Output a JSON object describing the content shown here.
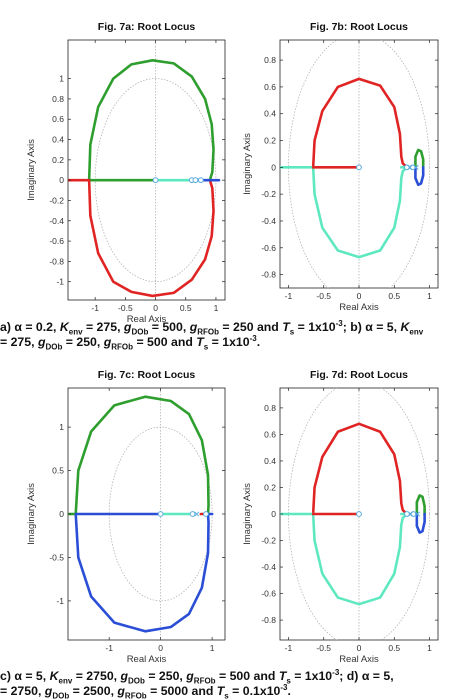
{
  "captions": {
    "ab": {
      "line1": [
        {
          "t": "a) α = 0.2, "
        },
        {
          "t": "K",
          "i": true
        },
        {
          "t": "env",
          "sub": true
        },
        {
          "t": " = 275, "
        },
        {
          "t": "g",
          "i": true
        },
        {
          "t": "DOb",
          "sub": true
        },
        {
          "t": " = 500, "
        },
        {
          "t": "g",
          "i": true
        },
        {
          "t": "RFOb",
          "sub": true
        },
        {
          "t": " = 250 and "
        },
        {
          "t": "T",
          "i": true
        },
        {
          "t": "s",
          "sub": true
        },
        {
          "t": " = 1x10"
        },
        {
          "t": "-3",
          "sup": true
        },
        {
          "t": "; b) α = 5, "
        },
        {
          "t": "K",
          "i": true
        },
        {
          "t": "env",
          "sub": true
        }
      ],
      "line2": [
        {
          "t": "= 275, "
        },
        {
          "t": "g",
          "i": true
        },
        {
          "t": "DOb",
          "sub": true
        },
        {
          "t": " = 250, "
        },
        {
          "t": "g",
          "i": true
        },
        {
          "t": "RFOb",
          "sub": true
        },
        {
          "t": " = 500 and "
        },
        {
          "t": "T",
          "i": true
        },
        {
          "t": "s",
          "sub": true
        },
        {
          "t": " = 1x10"
        },
        {
          "t": "-3",
          "sup": true
        },
        {
          "t": "."
        }
      ]
    },
    "cd": {
      "line1": [
        {
          "t": "c) α = 5, "
        },
        {
          "t": "K",
          "i": true
        },
        {
          "t": "env",
          "sub": true
        },
        {
          "t": " = 2750, "
        },
        {
          "t": "g",
          "i": true
        },
        {
          "t": "DOb",
          "sub": true
        },
        {
          "t": " = 250, "
        },
        {
          "t": "g",
          "i": true
        },
        {
          "t": "RFOb",
          "sub": true
        },
        {
          "t": " = 500 and "
        },
        {
          "t": "T",
          "i": true
        },
        {
          "t": "s",
          "sub": true
        },
        {
          "t": " = 1x10"
        },
        {
          "t": "-3",
          "sup": true
        },
        {
          "t": "; d) α = 5,"
        }
      ],
      "line2": [
        {
          "t": "= 2750, "
        },
        {
          "t": "g",
          "i": true
        },
        {
          "t": "DOb",
          "sub": true
        },
        {
          "t": " = 2500, "
        },
        {
          "t": "g",
          "i": true
        },
        {
          "t": "RFOb",
          "sub": true
        },
        {
          "t": " = 5000 and "
        },
        {
          "t": "T",
          "i": true
        },
        {
          "t": "s",
          "sub": true
        },
        {
          "t": " = 0.1x10"
        },
        {
          "t": "-3",
          "sup": true
        },
        {
          "t": "."
        }
      ]
    }
  },
  "colors": {
    "green": "#2e9e2e",
    "red": "#e02424",
    "blue": "#2a4fd6",
    "cyan": "#5ee8c0",
    "zero_marker": "#55aadd",
    "guide": "#aaaaaa",
    "axes": "#222222"
  },
  "chart_data": [
    {
      "id": "7a",
      "type": "line",
      "title": "Fig. 7a: Root Locus",
      "xlabel": "Real Axis",
      "ylabel": "Imaginary Axis",
      "xlim": [
        -1.45,
        1.15
      ],
      "ylim": [
        -1.18,
        1.38
      ],
      "xticks": [
        -1,
        -0.5,
        0,
        0.5,
        1
      ],
      "xtick_labels": [
        "-1",
        "-0.5",
        "0",
        "0.5",
        "1"
      ],
      "yticks": [
        -1,
        -0.8,
        -0.6,
        -0.4,
        -0.2,
        0,
        0.2,
        0.4,
        0.6,
        0.8,
        1
      ],
      "ytick_labels": [
        "-1",
        "-0.8",
        "-0.6",
        "-0.4",
        "-0.2",
        "0",
        "0.2",
        "0.4",
        "0.6",
        "0.8",
        "1"
      ],
      "unit_circle": true,
      "series": [
        {
          "color": "green",
          "points": [
            [
              -1.1,
              0
            ],
            [
              -1.08,
              0.35
            ],
            [
              -0.95,
              0.72
            ],
            [
              -0.7,
              1.0
            ],
            [
              -0.4,
              1.14
            ],
            [
              -0.05,
              1.18
            ],
            [
              0.3,
              1.15
            ],
            [
              0.6,
              1.02
            ],
            [
              0.82,
              0.8
            ],
            [
              0.93,
              0.55
            ],
            [
              0.96,
              0.3
            ],
            [
              0.94,
              0.08
            ],
            [
              0.9,
              0
            ]
          ]
        },
        {
          "color": "red",
          "points": [
            [
              -1.1,
              0
            ],
            [
              -1.08,
              -0.35
            ],
            [
              -0.95,
              -0.72
            ],
            [
              -0.7,
              -1.0
            ],
            [
              -0.4,
              -1.1
            ],
            [
              -0.05,
              -1.14
            ],
            [
              0.3,
              -1.11
            ],
            [
              0.6,
              -0.98
            ],
            [
              0.82,
              -0.78
            ],
            [
              0.93,
              -0.55
            ],
            [
              0.96,
              -0.3
            ],
            [
              0.94,
              -0.08
            ],
            [
              0.9,
              0
            ]
          ]
        },
        {
          "color": "green",
          "points": [
            [
              -1.1,
              0
            ],
            [
              -0.05,
              0
            ]
          ]
        },
        {
          "color": "red",
          "points": [
            [
              -1.45,
              0
            ],
            [
              -1.1,
              0
            ]
          ]
        },
        {
          "color": "cyan",
          "points": [
            [
              0.0,
              0
            ],
            [
              0.55,
              0
            ]
          ]
        },
        {
          "color": "blue",
          "points": [
            [
              0.7,
              0
            ],
            [
              1.05,
              0
            ]
          ]
        }
      ],
      "zeros": [
        [
          0.0,
          0
        ],
        [
          0.6,
          0
        ],
        [
          0.66,
          0
        ],
        [
          0.75,
          0
        ]
      ],
      "poles": []
    },
    {
      "id": "7b",
      "type": "line",
      "title": "Fig. 7b: Root Locus",
      "xlabel": "Real Axis",
      "ylabel": "Imaginary Axis",
      "xlim": [
        -1.12,
        1.12
      ],
      "ylim": [
        -0.9,
        0.95
      ],
      "xticks": [
        -1,
        -0.5,
        0,
        0.5,
        1
      ],
      "xtick_labels": [
        "-1",
        "-0.5",
        "0",
        "0.5",
        "1"
      ],
      "yticks": [
        -0.8,
        -0.6,
        -0.4,
        -0.2,
        0,
        0.2,
        0.4,
        0.6,
        0.8
      ],
      "ytick_labels": [
        "-0.8",
        "-0.6",
        "-0.4",
        "-0.2",
        "0",
        "0.2",
        "0.4",
        "0.6",
        "0.8"
      ],
      "unit_circle": true,
      "series": [
        {
          "color": "red",
          "points": [
            [
              -0.65,
              0
            ],
            [
              -0.63,
              0.2
            ],
            [
              -0.52,
              0.42
            ],
            [
              -0.3,
              0.6
            ],
            [
              0.0,
              0.66
            ],
            [
              0.3,
              0.61
            ],
            [
              0.5,
              0.45
            ],
            [
              0.58,
              0.25
            ],
            [
              0.6,
              0.08
            ],
            [
              0.62,
              0.03
            ],
            [
              0.68,
              0
            ]
          ]
        },
        {
          "color": "cyan",
          "points": [
            [
              -0.65,
              0
            ],
            [
              -0.63,
              -0.2
            ],
            [
              -0.52,
              -0.45
            ],
            [
              -0.3,
              -0.62
            ],
            [
              0.0,
              -0.67
            ],
            [
              0.3,
              -0.62
            ],
            [
              0.5,
              -0.45
            ],
            [
              0.58,
              -0.25
            ],
            [
              0.6,
              -0.08
            ],
            [
              0.62,
              -0.03
            ],
            [
              0.68,
              0
            ]
          ]
        },
        {
          "color": "cyan",
          "points": [
            [
              -1.12,
              0
            ],
            [
              -0.65,
              0
            ]
          ]
        },
        {
          "color": "red",
          "points": [
            [
              -0.65,
              0
            ],
            [
              0.0,
              0
            ]
          ]
        },
        {
          "color": "cyan",
          "points": [
            [
              0.6,
              0
            ],
            [
              0.78,
              0
            ]
          ]
        },
        {
          "color": "green",
          "points": [
            [
              0.8,
              0.0
            ],
            [
              0.8,
              0.08
            ],
            [
              0.84,
              0.13
            ],
            [
              0.88,
              0.12
            ],
            [
              0.91,
              0.06
            ],
            [
              0.91,
              0.0
            ]
          ]
        },
        {
          "color": "blue",
          "points": [
            [
              0.8,
              0.0
            ],
            [
              0.8,
              -0.08
            ],
            [
              0.84,
              -0.13
            ],
            [
              0.88,
              -0.12
            ],
            [
              0.91,
              -0.06
            ],
            [
              0.91,
              0.0
            ]
          ]
        }
      ],
      "zeros": [
        [
          0.0,
          0
        ],
        [
          0.68,
          0
        ],
        [
          0.76,
          0
        ]
      ],
      "poles": [
        [
          0.72,
          0
        ],
        [
          0.81,
          0
        ]
      ]
    },
    {
      "id": "7c",
      "type": "line",
      "title": "Fig. 7c: Root Locus",
      "xlabel": "Real Axis",
      "ylabel": "Imaginary Axis",
      "xlim": [
        -1.8,
        1.25
      ],
      "ylim": [
        -1.45,
        1.45
      ],
      "xticks": [
        -1,
        0,
        1
      ],
      "xtick_labels": [
        "-1",
        "0",
        "1"
      ],
      "yticks": [
        -1,
        -0.5,
        0,
        0.5,
        1
      ],
      "ytick_labels": [
        "-1",
        "-0.5",
        "0",
        "0.5",
        "1"
      ],
      "unit_circle": true,
      "series": [
        {
          "color": "green",
          "points": [
            [
              -1.65,
              0
            ],
            [
              -1.6,
              0.5
            ],
            [
              -1.35,
              0.95
            ],
            [
              -0.9,
              1.25
            ],
            [
              -0.3,
              1.35
            ],
            [
              0.2,
              1.3
            ],
            [
              0.55,
              1.15
            ],
            [
              0.8,
              0.85
            ],
            [
              0.92,
              0.45
            ],
            [
              0.93,
              0.1
            ],
            [
              0.92,
              0
            ]
          ]
        },
        {
          "color": "blue",
          "points": [
            [
              -1.65,
              0
            ],
            [
              -1.6,
              -0.5
            ],
            [
              -1.35,
              -0.95
            ],
            [
              -0.9,
              -1.25
            ],
            [
              -0.3,
              -1.35
            ],
            [
              0.2,
              -1.3
            ],
            [
              0.55,
              -1.15
            ],
            [
              0.8,
              -0.85
            ],
            [
              0.92,
              -0.45
            ],
            [
              0.93,
              -0.1
            ],
            [
              0.92,
              0
            ]
          ]
        },
        {
          "color": "green",
          "points": [
            [
              -1.8,
              0
            ],
            [
              -1.65,
              0
            ]
          ]
        },
        {
          "color": "blue",
          "points": [
            [
              -1.65,
              0
            ],
            [
              0.0,
              0
            ]
          ]
        },
        {
          "color": "cyan",
          "points": [
            [
              0.0,
              0
            ],
            [
              0.6,
              0
            ]
          ]
        },
        {
          "color": "red",
          "points": [
            [
              0.78,
              0
            ],
            [
              0.86,
              0
            ]
          ]
        },
        {
          "color": "blue",
          "points": [
            [
              0.95,
              0
            ],
            [
              1.0,
              0
            ]
          ]
        }
      ],
      "zeros": [
        [
          0.0,
          0
        ],
        [
          0.62,
          0
        ],
        [
          0.88,
          0
        ]
      ],
      "poles": [
        [
          0.7,
          0
        ]
      ]
    },
    {
      "id": "7d",
      "type": "line",
      "title": "Fig. 7d: Root Locus",
      "xlabel": "Real Axis",
      "ylabel": "Imaginary Axis",
      "xlim": [
        -1.12,
        1.12
      ],
      "ylim": [
        -0.95,
        0.95
      ],
      "xticks": [
        -1,
        -0.5,
        0,
        0.5,
        1
      ],
      "xtick_labels": [
        "-1",
        "-0.5",
        "0",
        "0.5",
        "1"
      ],
      "yticks": [
        -0.8,
        -0.6,
        -0.4,
        -0.2,
        0,
        0.2,
        0.4,
        0.6,
        0.8
      ],
      "ytick_labels": [
        "-0.8",
        "-0.6",
        "-0.4",
        "-0.2",
        "0",
        "0.2",
        "0.4",
        "0.6",
        "0.8"
      ],
      "unit_circle": true,
      "series": [
        {
          "color": "red",
          "points": [
            [
              -0.65,
              0
            ],
            [
              -0.63,
              0.2
            ],
            [
              -0.52,
              0.43
            ],
            [
              -0.3,
              0.62
            ],
            [
              0.0,
              0.68
            ],
            [
              0.3,
              0.62
            ],
            [
              0.5,
              0.45
            ],
            [
              0.58,
              0.25
            ],
            [
              0.6,
              0.08
            ],
            [
              0.62,
              0.03
            ],
            [
              0.68,
              0
            ]
          ]
        },
        {
          "color": "cyan",
          "points": [
            [
              -0.65,
              0
            ],
            [
              -0.63,
              -0.2
            ],
            [
              -0.52,
              -0.45
            ],
            [
              -0.3,
              -0.63
            ],
            [
              0.0,
              -0.68
            ],
            [
              0.3,
              -0.63
            ],
            [
              0.5,
              -0.45
            ],
            [
              0.58,
              -0.25
            ],
            [
              0.6,
              -0.08
            ],
            [
              0.62,
              -0.03
            ],
            [
              0.68,
              0
            ]
          ]
        },
        {
          "color": "cyan",
          "points": [
            [
              -1.12,
              0
            ],
            [
              -0.65,
              0
            ]
          ]
        },
        {
          "color": "red",
          "points": [
            [
              -0.65,
              0
            ],
            [
              0.0,
              0
            ]
          ]
        },
        {
          "color": "cyan",
          "points": [
            [
              0.6,
              0
            ],
            [
              0.72,
              0
            ]
          ]
        },
        {
          "color": "red",
          "points": [
            [
              0.74,
              0
            ],
            [
              0.8,
              0
            ]
          ]
        },
        {
          "color": "green",
          "points": [
            [
              0.82,
              0.0
            ],
            [
              0.82,
              0.09
            ],
            [
              0.86,
              0.14
            ],
            [
              0.9,
              0.13
            ],
            [
              0.93,
              0.06
            ],
            [
              0.93,
              0.0
            ]
          ]
        },
        {
          "color": "blue",
          "points": [
            [
              0.82,
              0.0
            ],
            [
              0.82,
              -0.09
            ],
            [
              0.86,
              -0.14
            ],
            [
              0.9,
              -0.13
            ],
            [
              0.93,
              -0.06
            ],
            [
              0.93,
              0.0
            ]
          ]
        }
      ],
      "zeros": [
        [
          0.0,
          0
        ],
        [
          0.68,
          0
        ],
        [
          0.77,
          0
        ]
      ],
      "poles": [
        [
          0.73,
          0
        ],
        [
          0.83,
          0
        ]
      ]
    }
  ]
}
